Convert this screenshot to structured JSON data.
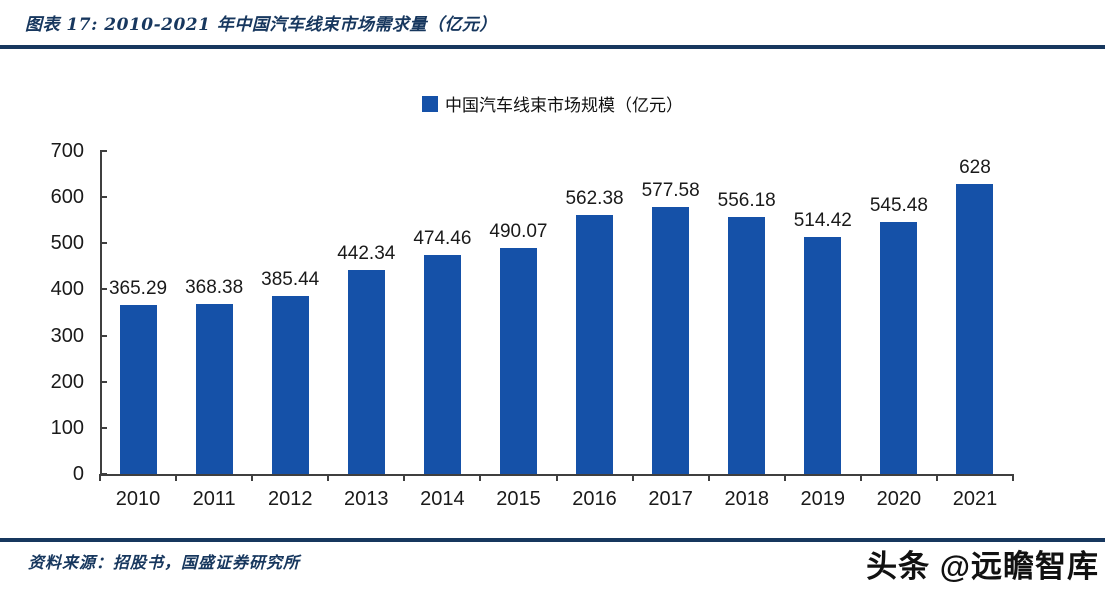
{
  "figure": {
    "title": "图表 17:  2010-2021 年中国汽车线束市场需求量（亿元）",
    "source": "资料来源：招股书，国盛证券研究所",
    "watermark": "头条 @远瞻智库"
  },
  "colors": {
    "accent": "#17375E",
    "bar": "#1551A8",
    "axis": "#3f3f3f",
    "label": "#1a1a1a"
  },
  "chart_data": {
    "type": "bar",
    "legend": [
      "中国汽车线束市场规模（亿元）"
    ],
    "legend_position": "top-center",
    "categories": [
      "2010",
      "2011",
      "2012",
      "2013",
      "2014",
      "2015",
      "2016",
      "2017",
      "2018",
      "2019",
      "2020",
      "2021"
    ],
    "values": [
      365.29,
      368.38,
      385.44,
      442.34,
      474.46,
      490.07,
      562.38,
      577.58,
      556.18,
      514.42,
      545.48,
      628
    ],
    "value_labels": [
      "365.29",
      "368.38",
      "385.44",
      "442.34",
      "474.46",
      "490.07",
      "562.38",
      "577.58",
      "556.18",
      "514.42",
      "545.48",
      "628"
    ],
    "xlabel": "",
    "ylabel": "",
    "ylim": [
      0,
      700
    ],
    "yticks": [
      0,
      100,
      200,
      300,
      400,
      500,
      600,
      700
    ],
    "grid": false
  }
}
